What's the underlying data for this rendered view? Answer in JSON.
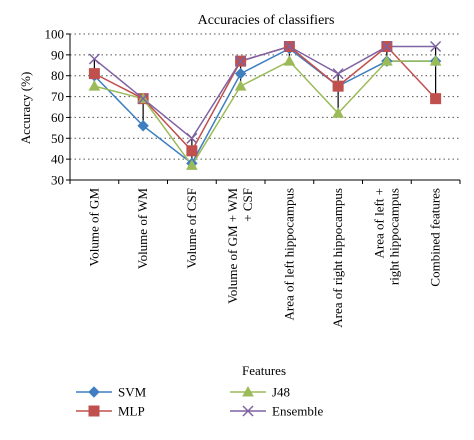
{
  "chart_data": {
    "type": "line",
    "title": "Accuracies of classifiers",
    "xlabel": "Features",
    "ylabel": "Accuracy (%)",
    "ylim": [
      30,
      100
    ],
    "yticks": [
      30,
      40,
      50,
      60,
      70,
      80,
      90,
      100
    ],
    "grid": "horizontal dotted",
    "legend_position": "bottom",
    "categories": [
      [
        "Volume of GM"
      ],
      [
        "Volume of WM"
      ],
      [
        "Volume of CSF"
      ],
      [
        "Volume of GM + WM",
        "+ CSF"
      ],
      [
        "Area of left hippocampus"
      ],
      [
        "Area of right hippocampus"
      ],
      [
        "Area of left +",
        "right hippocampus"
      ],
      [
        "Combined features"
      ]
    ],
    "series": [
      {
        "name": "SVM",
        "color": "#3f7fbf",
        "marker": "diamond",
        "values": [
          80,
          56,
          38,
          81,
          93,
          75,
          87,
          87
        ]
      },
      {
        "name": "MLP",
        "color": "#c0504d",
        "marker": "square",
        "values": [
          81,
          69,
          44,
          87,
          94,
          75,
          94,
          69
        ]
      },
      {
        "name": "J48",
        "color": "#9bbb59",
        "marker": "triangle",
        "values": [
          75,
          69,
          37,
          75,
          87,
          62,
          87,
          87
        ]
      },
      {
        "name": "Ensemble",
        "color": "#7f63a2",
        "marker": "x",
        "values": [
          88,
          69,
          50,
          87,
          94,
          81,
          94,
          94
        ]
      }
    ]
  }
}
